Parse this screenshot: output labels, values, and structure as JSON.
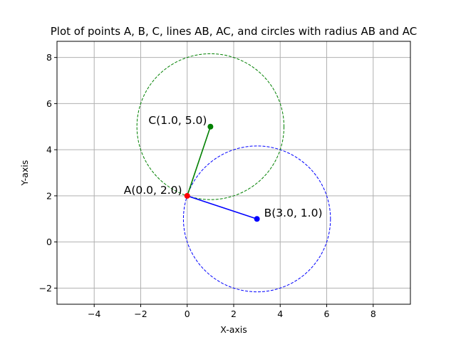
{
  "chart_data": {
    "type": "scatter",
    "title": "Plot of points A, B, C, lines AB, AC, and circles with radius AB and AC",
    "xlabel": "X-axis",
    "ylabel": "Y-axis",
    "xlim": [
      -5.6,
      9.6
    ],
    "ylim": [
      -2.7,
      8.7
    ],
    "x_ticks": [
      -4,
      -2,
      0,
      2,
      4,
      6,
      8
    ],
    "x_tick_labels": [
      "−4",
      "−2",
      "0",
      "2",
      "4",
      "6",
      "8"
    ],
    "y_ticks": [
      -2,
      0,
      2,
      4,
      6,
      8
    ],
    "y_tick_labels": [
      "−2",
      "0",
      "2",
      "4",
      "6",
      "8"
    ],
    "grid": true,
    "points": [
      {
        "id": "A",
        "label": "A(0.0, 2.0)",
        "x": 0.0,
        "y": 2.0,
        "color": "#ff0000"
      },
      {
        "id": "B",
        "label": "B(3.0, 1.0)",
        "x": 3.0,
        "y": 1.0,
        "color": "#0000ff"
      },
      {
        "id": "C",
        "label": "C(1.0, 5.0)",
        "x": 1.0,
        "y": 5.0,
        "color": "#008000"
      }
    ],
    "segments": [
      {
        "id": "AB",
        "from": "A",
        "to": "B",
        "color": "#0000ff"
      },
      {
        "id": "AC",
        "from": "A",
        "to": "C",
        "color": "#008000"
      }
    ],
    "circles": [
      {
        "id": "circle-ab",
        "center": "B",
        "radius": 3.1623,
        "color": "#0000ff",
        "style": "dashed"
      },
      {
        "id": "circle-ac",
        "center": "C",
        "radius": 3.1623,
        "color": "#008000",
        "style": "dashed"
      }
    ]
  }
}
